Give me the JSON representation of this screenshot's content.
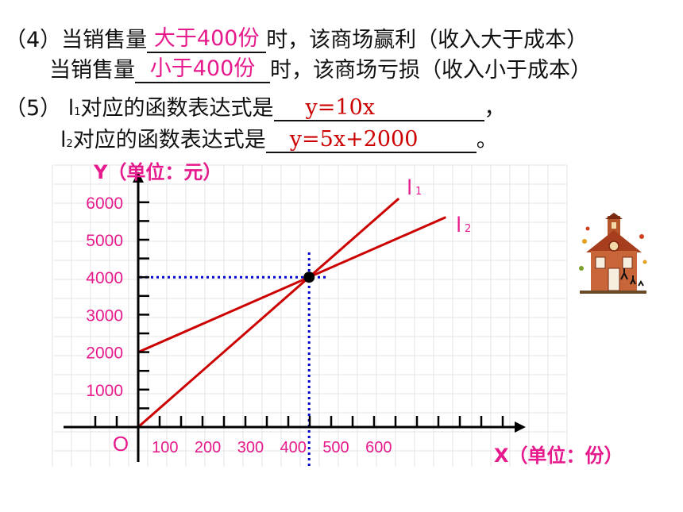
{
  "text": {
    "l4a_pre": "（4）当销售量",
    "l4a_ans": "大于400份",
    "l4a_post": "时，该商场赢利（收入大于成本）",
    "l4b_pre": "当销售量",
    "l4b_ans": "小于400份",
    "l4b_post": "时，该商场亏损（收入小于成本）",
    "l5a_pre": "（5）  l",
    "l5a_sub": "1",
    "l5a_mid": "对应的函数表达式是",
    "l5a_ans": "y=10x",
    "l5a_post": "，",
    "l5b_pre": "l",
    "l5b_sub": "2",
    "l5b_mid": "对应的函数表达式是",
    "l5b_ans": "y=5x+2000",
    "l5b_post": "。"
  },
  "colors": {
    "accent": "#e61a8c",
    "line": "#cc0000",
    "guide": "#0000cc",
    "grid": "#e6e6e6",
    "axis": "#000000"
  },
  "chart_data": {
    "type": "line",
    "ylabel": "Y（单位：元）",
    "xlabel": "X（单位：份）",
    "origin_label": "O",
    "x_ticks": [
      100,
      200,
      300,
      400,
      500,
      600
    ],
    "y_ticks": [
      1000,
      2000,
      3000,
      4000,
      5000,
      6000
    ],
    "xlim": [
      0,
      880
    ],
    "ylim": [
      0,
      6600
    ],
    "grid": true,
    "series": [
      {
        "name": "l1",
        "label_main": "l",
        "label_sub": "1",
        "x": [
          0,
          610
        ],
        "y": [
          0,
          6100
        ]
      },
      {
        "name": "l2",
        "label_main": "l",
        "label_sub": "2",
        "x": [
          0,
          720
        ],
        "y": [
          2000,
          5600
        ]
      }
    ],
    "intersection": {
      "x": 400,
      "y": 4000
    }
  }
}
